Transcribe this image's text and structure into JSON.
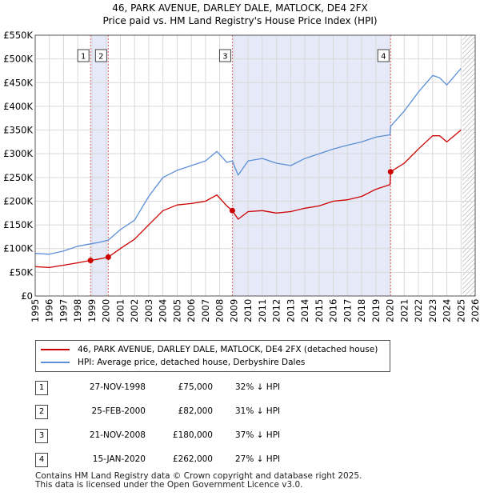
{
  "chart_data": {
    "type": "line",
    "title": [
      "46, PARK AVENUE, DARLEY DALE, MATLOCK, DE4 2FX",
      "Price paid vs. HM Land Registry's House Price Index (HPI)"
    ],
    "xlabel": "",
    "ylabel": "",
    "xlim": [
      1995,
      2026
    ],
    "ylim": [
      0,
      550000
    ],
    "x_ticks": [
      "1995",
      "1996",
      "1997",
      "1998",
      "1999",
      "2000",
      "2001",
      "2002",
      "2003",
      "2004",
      "2005",
      "2006",
      "2007",
      "2008",
      "2009",
      "2010",
      "2011",
      "2012",
      "2013",
      "2014",
      "2015",
      "2016",
      "2017",
      "2018",
      "2019",
      "2020",
      "2021",
      "2022",
      "2023",
      "2024",
      "2025",
      "2026"
    ],
    "y_ticks": [
      {
        "value": 0,
        "label": "£0"
      },
      {
        "value": 50000,
        "label": "£50K"
      },
      {
        "value": 100000,
        "label": "£100K"
      },
      {
        "value": 150000,
        "label": "£150K"
      },
      {
        "value": 200000,
        "label": "£200K"
      },
      {
        "value": 250000,
        "label": "£250K"
      },
      {
        "value": 300000,
        "label": "£300K"
      },
      {
        "value": 350000,
        "label": "£350K"
      },
      {
        "value": 400000,
        "label": "£400K"
      },
      {
        "value": 450000,
        "label": "£450K"
      },
      {
        "value": 500000,
        "label": "£500K"
      },
      {
        "value": 550000,
        "label": "£550K"
      }
    ],
    "grid": true,
    "shaded_regions": [
      {
        "from": 1998.9,
        "to": 2000.15,
        "color": "#e6e9f7"
      },
      {
        "from": 2008.89,
        "to": 2020.04,
        "color": "#e6e9f7"
      }
    ],
    "forecast_hatch_from": 2025.1,
    "series": [
      {
        "name": "46, PARK AVENUE, DARLEY DALE, MATLOCK, DE4 2FX (detached house)",
        "color": "#cc0000",
        "x": [
          1995.0,
          1996.0,
          1997.0,
          1998.0,
          1998.9,
          1999.5,
          2000.15,
          2001.0,
          2002.0,
          2003.0,
          2004.0,
          2005.0,
          2006.0,
          2007.0,
          2007.8,
          2008.5,
          2008.89,
          2009.3,
          2010.0,
          2011.0,
          2012.0,
          2013.0,
          2014.0,
          2015.0,
          2016.0,
          2017.0,
          2018.0,
          2019.0,
          2020.0,
          2020.04,
          2021.0,
          2022.0,
          2023.0,
          2023.5,
          2024.0,
          2025.0
        ],
        "y": [
          62000,
          60000,
          65000,
          70000,
          75000,
          78000,
          82000,
          100000,
          120000,
          150000,
          180000,
          192000,
          195000,
          200000,
          213000,
          190000,
          180000,
          162000,
          178000,
          180000,
          175000,
          178000,
          185000,
          190000,
          200000,
          203000,
          210000,
          225000,
          235000,
          262000,
          280000,
          310000,
          338000,
          338000,
          325000,
          350000
        ]
      },
      {
        "name": "HPI: Average price, detached house, Derbyshire Dales",
        "color": "#5b8fd6",
        "x": [
          1995.0,
          1996.0,
          1997.0,
          1998.0,
          1998.9,
          1999.5,
          2000.15,
          2001.0,
          2002.0,
          2003.0,
          2004.0,
          2005.0,
          2006.0,
          2007.0,
          2007.8,
          2008.5,
          2008.89,
          2009.3,
          2010.0,
          2011.0,
          2012.0,
          2013.0,
          2014.0,
          2015.0,
          2016.0,
          2017.0,
          2018.0,
          2019.0,
          2020.0,
          2020.04,
          2021.0,
          2022.0,
          2023.0,
          2023.5,
          2024.0,
          2025.0
        ],
        "y": [
          90000,
          88000,
          95000,
          105000,
          110000,
          113000,
          118000,
          140000,
          160000,
          210000,
          250000,
          265000,
          275000,
          285000,
          305000,
          282000,
          285000,
          255000,
          285000,
          290000,
          280000,
          275000,
          290000,
          300000,
          310000,
          318000,
          325000,
          335000,
          340000,
          358000,
          390000,
          430000,
          465000,
          460000,
          445000,
          480000
        ]
      }
    ],
    "sale_markers": [
      {
        "id": "1",
        "x": 1998.9,
        "y": 75000
      },
      {
        "id": "2",
        "x": 2000.15,
        "y": 82000
      },
      {
        "id": "3",
        "x": 2008.89,
        "y": 180000
      },
      {
        "id": "4",
        "x": 2020.04,
        "y": 262000
      }
    ]
  },
  "legend": {
    "property_label": "46, PARK AVENUE, DARLEY DALE, MATLOCK, DE4 2FX (detached house)",
    "hpi_label": "HPI: Average price, detached house, Derbyshire Dales"
  },
  "sales": [
    {
      "id": "1",
      "date": "27-NOV-1998",
      "price": "£75,000",
      "hpi": "32% ↓ HPI"
    },
    {
      "id": "2",
      "date": "25-FEB-2000",
      "price": "£82,000",
      "hpi": "31% ↓ HPI"
    },
    {
      "id": "3",
      "date": "21-NOV-2008",
      "price": "£180,000",
      "hpi": "37% ↓ HPI"
    },
    {
      "id": "4",
      "date": "15-JAN-2020",
      "price": "£262,000",
      "hpi": "27% ↓ HPI"
    }
  ],
  "footer": {
    "line1": "Contains HM Land Registry data © Crown copyright and database right 2025.",
    "line2": "This data is licensed under the Open Government Licence v3.0."
  },
  "colors": {
    "property": "#cc0000",
    "hpi": "#5b8fd6",
    "grid": "#d9d9d9",
    "shade": "#e6e9f7"
  }
}
